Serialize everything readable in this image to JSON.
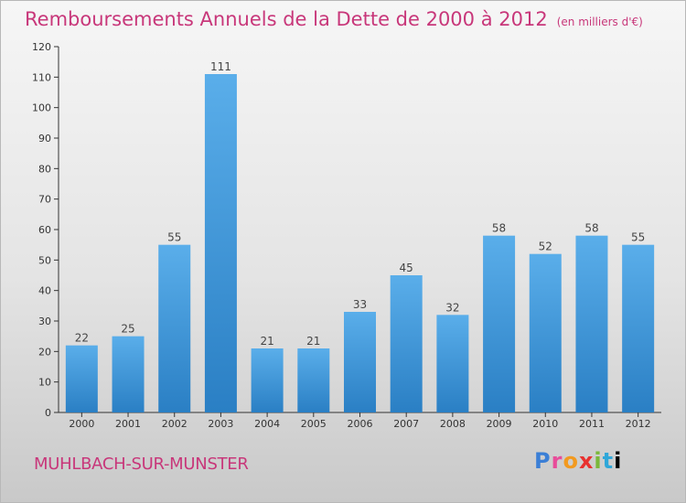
{
  "header": {
    "title": "Remboursements Annuels de la Dette de 2000 à 2012",
    "unit": "(en milliers d'€)"
  },
  "footer": {
    "commune": "MUHLBACH-SUR-MUNSTER",
    "logo_letters": [
      "P",
      "r",
      "o",
      "x",
      "i",
      "t",
      "i"
    ]
  },
  "colors": {
    "title": "#c8377a",
    "bar_top": "#5aaeea",
    "bar_bottom": "#2a7fc4"
  },
  "chart_data": {
    "type": "bar",
    "title": "Remboursements Annuels de la Dette de 2000 à 2012",
    "xlabel": "",
    "ylabel": "",
    "categories": [
      "2000",
      "2001",
      "2002",
      "2003",
      "2004",
      "2005",
      "2006",
      "2007",
      "2008",
      "2009",
      "2010",
      "2011",
      "2012"
    ],
    "values": [
      22,
      25,
      55,
      111,
      21,
      21,
      33,
      45,
      32,
      58,
      52,
      58,
      55
    ],
    "ylim": [
      0,
      120
    ],
    "yticks": [
      0,
      10,
      20,
      30,
      40,
      50,
      60,
      70,
      80,
      90,
      100,
      110,
      120
    ],
    "grid": false,
    "legend": "none"
  }
}
